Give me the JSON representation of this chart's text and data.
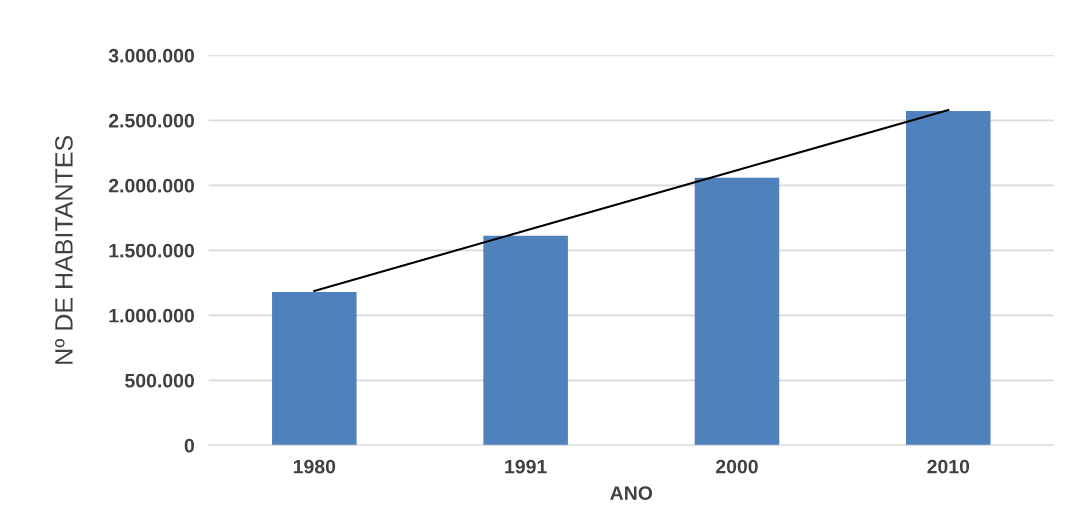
{
  "chart_data": {
    "type": "bar",
    "xlabel": "ANO",
    "ylabel": "Nº DE HABITANTES",
    "categories": [
      "1980",
      "1991",
      "2000",
      "2010"
    ],
    "series": [
      {
        "color": "#4f81bd",
        "values": [
          1180000,
          1612000,
          2058000,
          2571000
        ]
      },
      {
        "type": "line",
        "color": "#000000",
        "values": [
          1188000,
          1652000,
          2116000,
          2580000
        ]
      }
    ],
    "ylim": [
      0,
      3000000
    ],
    "yticks": [
      {
        "value": 0,
        "label": "0"
      },
      {
        "value": 500000,
        "label": "500.000"
      },
      {
        "value": 1000000,
        "label": "1.000.000"
      },
      {
        "value": 1500000,
        "label": "1.500.000"
      },
      {
        "value": 2000000,
        "label": "2.000.000"
      },
      {
        "value": 2500000,
        "label": "2.500.000"
      },
      {
        "value": 3000000,
        "label": "3.000.000"
      }
    ],
    "grid": "y"
  }
}
